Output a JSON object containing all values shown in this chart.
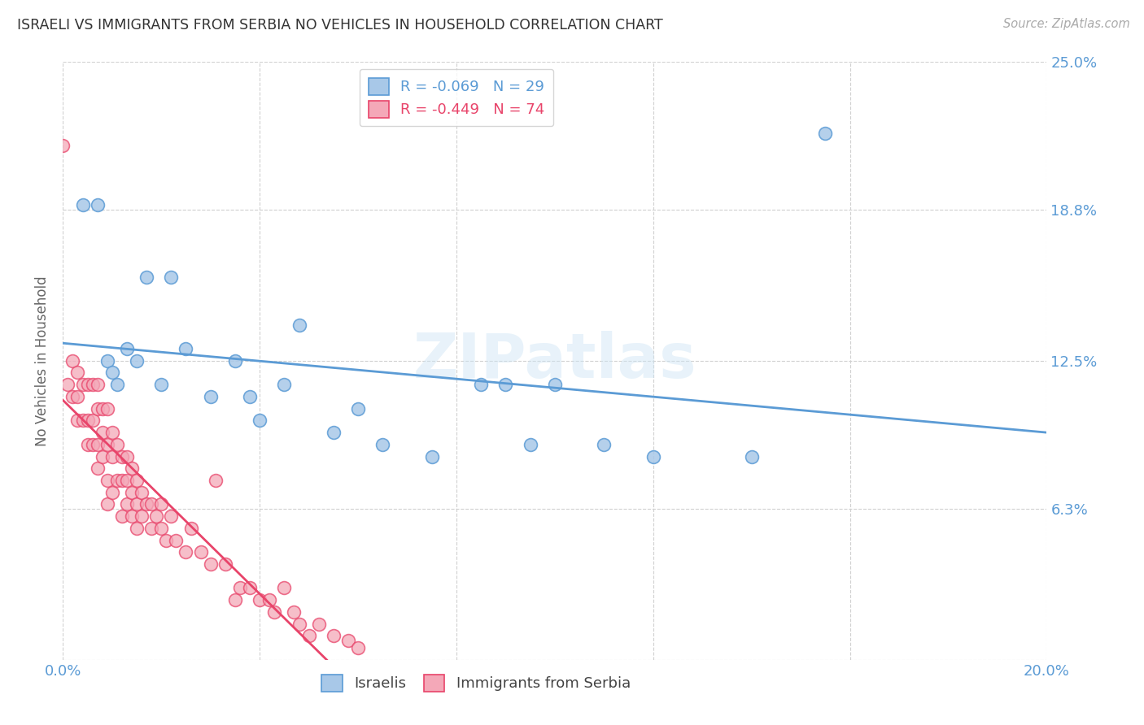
{
  "title": "ISRAELI VS IMMIGRANTS FROM SERBIA NO VEHICLES IN HOUSEHOLD CORRELATION CHART",
  "source": "Source: ZipAtlas.com",
  "ylabel": "No Vehicles in Household",
  "watermark": "ZIPatlas",
  "legend_israeli": "Israelis",
  "legend_serbia": "Immigrants from Serbia",
  "r_israeli": -0.069,
  "n_israeli": 29,
  "r_serbia": -0.449,
  "n_serbia": 74,
  "xmin": 0.0,
  "xmax": 0.2,
  "ymin": 0.0,
  "ymax": 0.25,
  "yticks": [
    0.0,
    0.063,
    0.125,
    0.188,
    0.25
  ],
  "ytick_labels": [
    "",
    "6.3%",
    "12.5%",
    "18.8%",
    "25.0%"
  ],
  "xtick_positions": [
    0.0,
    0.04,
    0.08,
    0.12,
    0.16,
    0.2
  ],
  "xtick_labels": [
    "0.0%",
    "",
    "",
    "",
    "",
    "20.0%"
  ],
  "color_israeli": "#a8c8e8",
  "color_serbia": "#f4a8b8",
  "line_color_israeli": "#5b9bd5",
  "line_color_serbia": "#e8446a",
  "grid_color": "#d0d0d0",
  "title_color": "#333333",
  "right_tick_color": "#5b9bd5",
  "israelis_x": [
    0.004,
    0.007,
    0.009,
    0.01,
    0.011,
    0.013,
    0.015,
    0.017,
    0.02,
    0.022,
    0.025,
    0.03,
    0.035,
    0.038,
    0.04,
    0.045,
    0.048,
    0.055,
    0.06,
    0.065,
    0.075,
    0.085,
    0.09,
    0.095,
    0.1,
    0.11,
    0.12,
    0.14,
    0.155
  ],
  "israelis_y": [
    0.19,
    0.19,
    0.125,
    0.12,
    0.115,
    0.13,
    0.125,
    0.16,
    0.115,
    0.16,
    0.13,
    0.11,
    0.125,
    0.11,
    0.1,
    0.115,
    0.14,
    0.095,
    0.105,
    0.09,
    0.085,
    0.115,
    0.115,
    0.09,
    0.115,
    0.09,
    0.085,
    0.085,
    0.22
  ],
  "serbia_x": [
    0.0,
    0.001,
    0.002,
    0.002,
    0.003,
    0.003,
    0.003,
    0.004,
    0.004,
    0.005,
    0.005,
    0.005,
    0.006,
    0.006,
    0.006,
    0.007,
    0.007,
    0.007,
    0.007,
    0.008,
    0.008,
    0.008,
    0.009,
    0.009,
    0.009,
    0.009,
    0.01,
    0.01,
    0.01,
    0.011,
    0.011,
    0.012,
    0.012,
    0.012,
    0.013,
    0.013,
    0.013,
    0.014,
    0.014,
    0.014,
    0.015,
    0.015,
    0.015,
    0.016,
    0.016,
    0.017,
    0.018,
    0.018,
    0.019,
    0.02,
    0.02,
    0.021,
    0.022,
    0.023,
    0.025,
    0.026,
    0.028,
    0.03,
    0.031,
    0.033,
    0.035,
    0.036,
    0.038,
    0.04,
    0.042,
    0.043,
    0.045,
    0.047,
    0.048,
    0.05,
    0.052,
    0.055,
    0.058,
    0.06
  ],
  "serbia_y": [
    0.215,
    0.115,
    0.125,
    0.11,
    0.12,
    0.11,
    0.1,
    0.115,
    0.1,
    0.115,
    0.1,
    0.09,
    0.115,
    0.1,
    0.09,
    0.115,
    0.105,
    0.09,
    0.08,
    0.105,
    0.095,
    0.085,
    0.105,
    0.09,
    0.075,
    0.065,
    0.095,
    0.085,
    0.07,
    0.09,
    0.075,
    0.085,
    0.075,
    0.06,
    0.085,
    0.075,
    0.065,
    0.08,
    0.07,
    0.06,
    0.075,
    0.065,
    0.055,
    0.07,
    0.06,
    0.065,
    0.065,
    0.055,
    0.06,
    0.065,
    0.055,
    0.05,
    0.06,
    0.05,
    0.045,
    0.055,
    0.045,
    0.04,
    0.075,
    0.04,
    0.025,
    0.03,
    0.03,
    0.025,
    0.025,
    0.02,
    0.03,
    0.02,
    0.015,
    0.01,
    0.015,
    0.01,
    0.008,
    0.005
  ]
}
